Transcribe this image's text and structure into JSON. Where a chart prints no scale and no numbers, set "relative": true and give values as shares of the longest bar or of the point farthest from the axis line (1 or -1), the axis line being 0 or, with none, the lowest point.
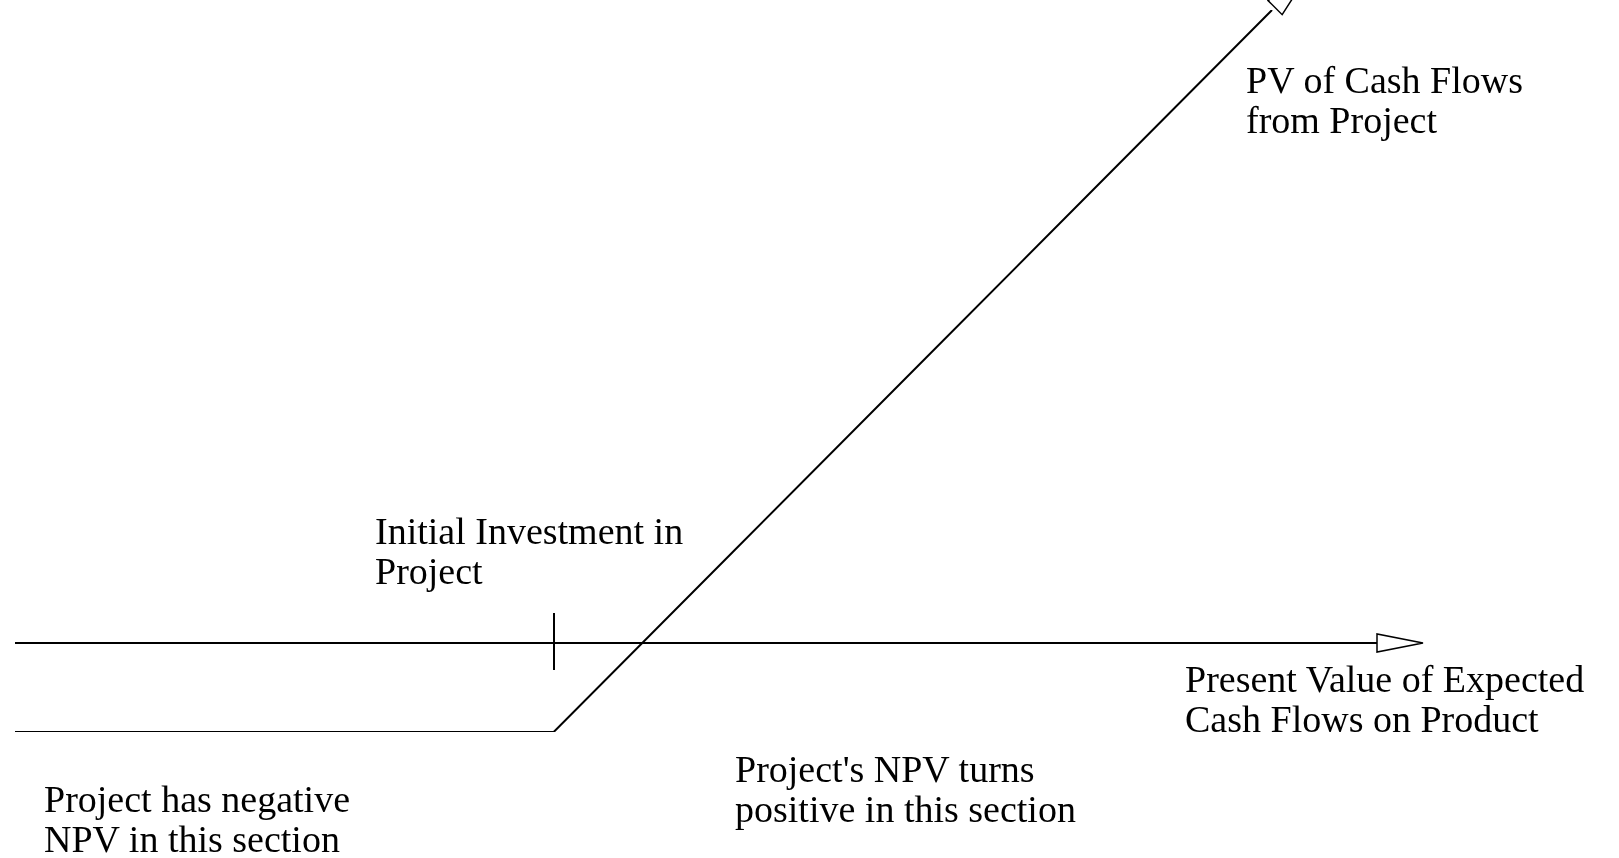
{
  "chart_data": {
    "type": "line",
    "relative": true,
    "categories": [
      null,
      null,
      null,
      null,
      null,
      null,
      null,
      null
    ],
    "series": [
      {
        "color": "#000000",
        "values": [
          -0.14,
          -0.14,
          -0.14,
          -0.14,
          0.145,
          0.43,
          0.715,
          1
        ]
      }
    ],
    "marker": "none",
    "line_style": "solid",
    "legend": false,
    "annotations": [
      "PV of Cash Flows\nfrom Project",
      "Initial Investment in\nProject",
      "Present Value of Expected\nCash Flows on Product",
      "Project's NPV turns\npositive in this section",
      "Project has negative\nNPV in this section"
    ]
  }
}
